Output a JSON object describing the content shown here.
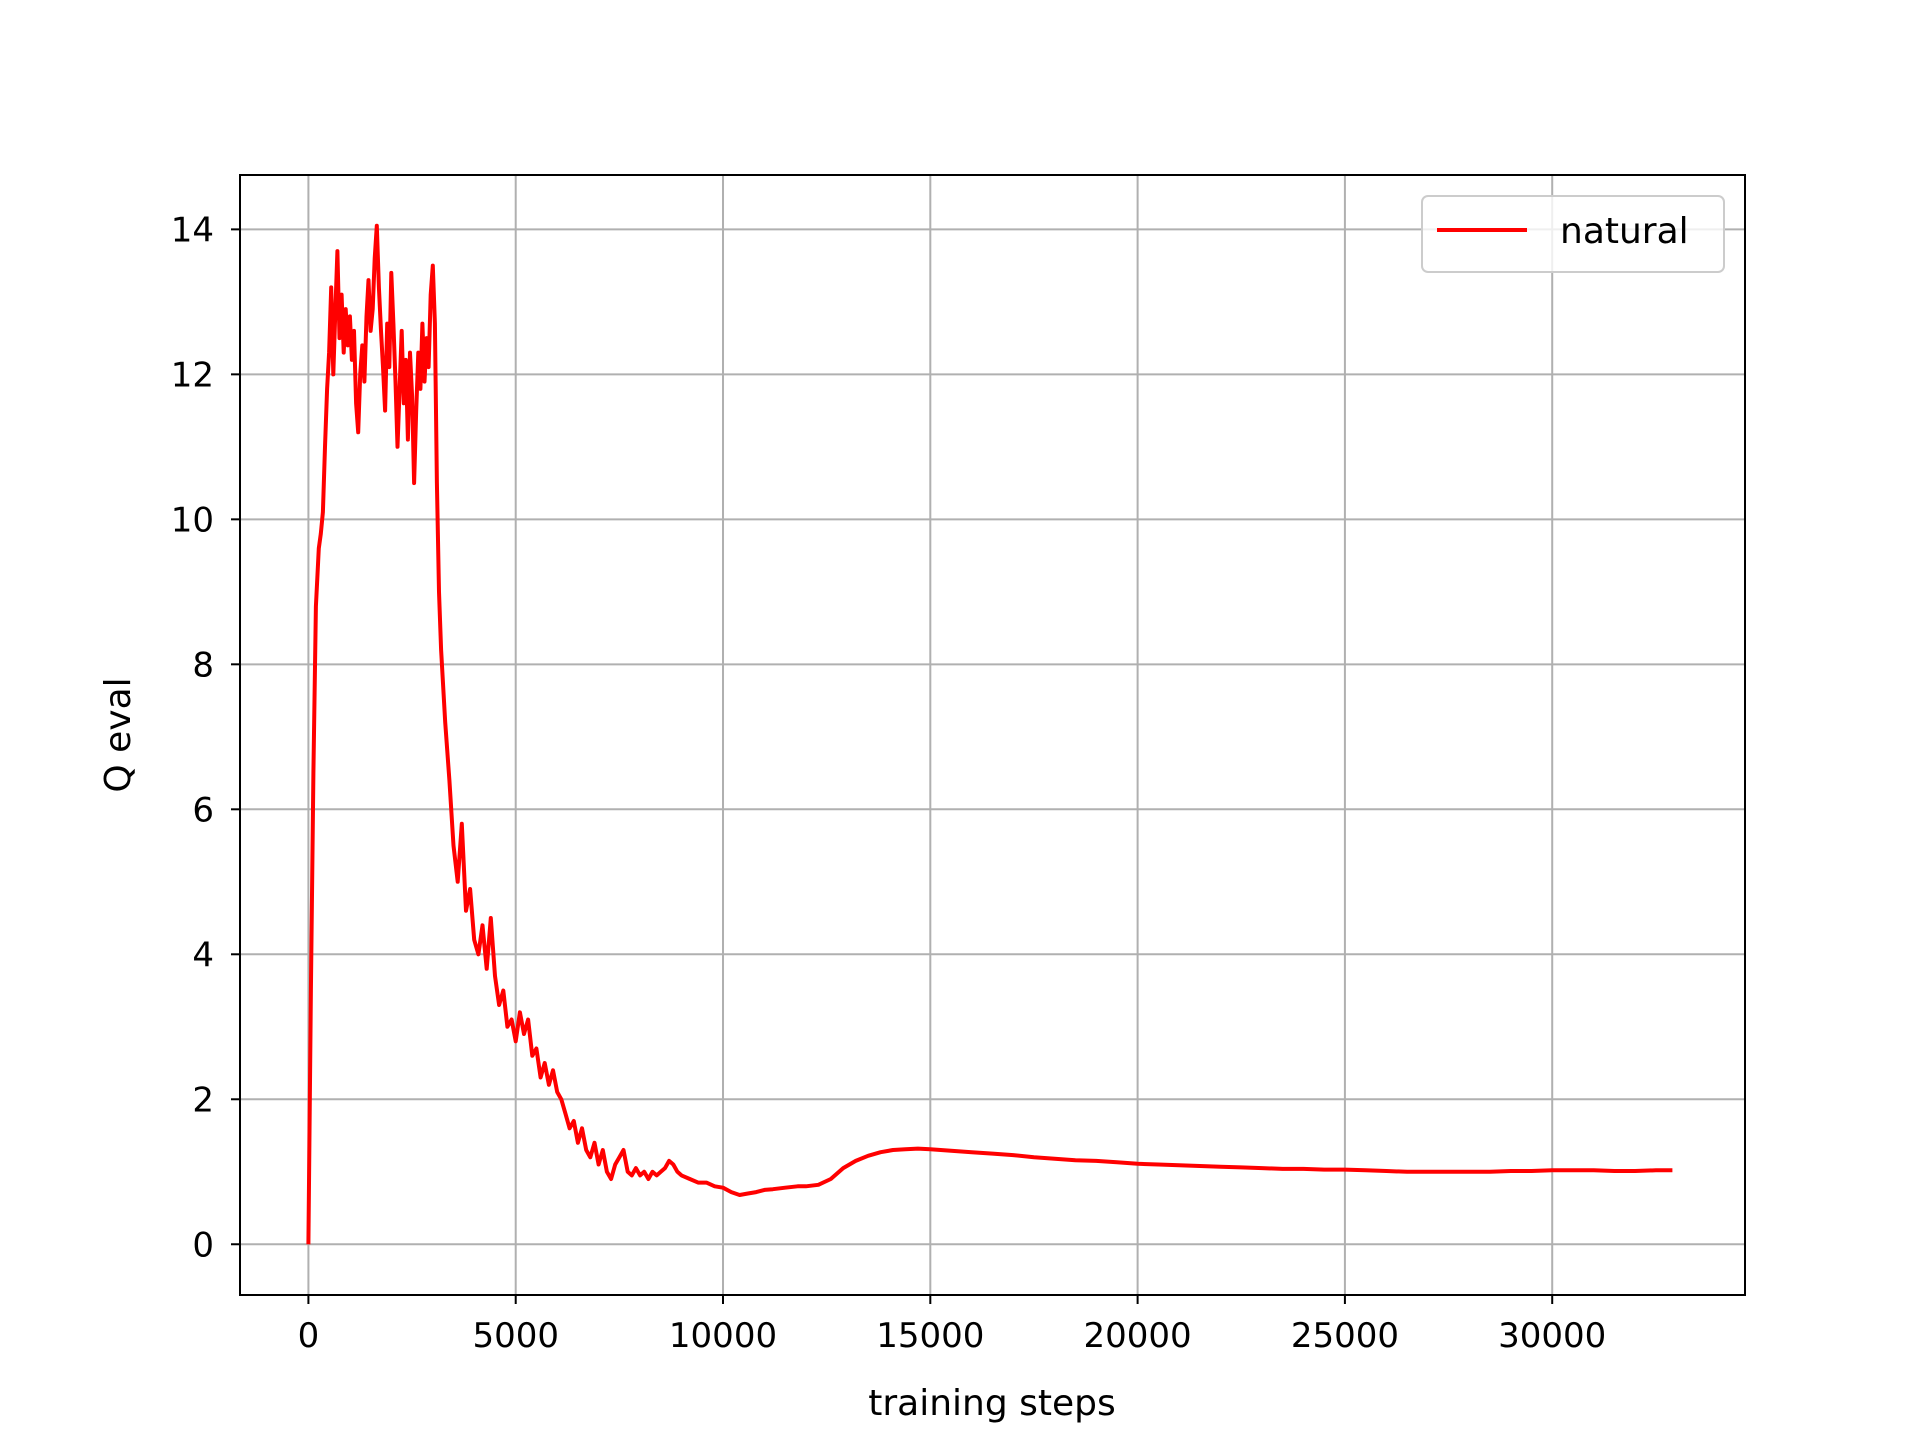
{
  "chart_data": {
    "type": "line",
    "xlabel": "training steps",
    "ylabel": "Q eval",
    "xlim": [
      -1650,
      34650
    ],
    "ylim": [
      -0.7,
      14.75
    ],
    "xticks": [
      0,
      5000,
      10000,
      15000,
      20000,
      25000,
      30000
    ],
    "yticks": [
      0,
      2,
      4,
      6,
      8,
      10,
      12,
      14
    ],
    "grid": true,
    "legend": {
      "position": "top-right",
      "entries": [
        "natural"
      ]
    },
    "series": [
      {
        "name": "natural",
        "color": "#ff0000",
        "points": [
          [
            0,
            0
          ],
          [
            60,
            3.5
          ],
          [
            120,
            6.5
          ],
          [
            180,
            8.8
          ],
          [
            250,
            9.6
          ],
          [
            300,
            9.8
          ],
          [
            350,
            10.1
          ],
          [
            400,
            11.0
          ],
          [
            450,
            11.8
          ],
          [
            500,
            12.3
          ],
          [
            550,
            13.2
          ],
          [
            600,
            12.0
          ],
          [
            650,
            12.9
          ],
          [
            700,
            13.7
          ],
          [
            750,
            12.5
          ],
          [
            800,
            13.1
          ],
          [
            850,
            12.3
          ],
          [
            900,
            12.9
          ],
          [
            950,
            12.4
          ],
          [
            1000,
            12.8
          ],
          [
            1050,
            12.2
          ],
          [
            1100,
            12.6
          ],
          [
            1150,
            11.6
          ],
          [
            1200,
            11.2
          ],
          [
            1250,
            12.0
          ],
          [
            1300,
            12.4
          ],
          [
            1350,
            11.9
          ],
          [
            1400,
            12.8
          ],
          [
            1450,
            13.3
          ],
          [
            1500,
            12.6
          ],
          [
            1550,
            12.9
          ],
          [
            1600,
            13.6
          ],
          [
            1650,
            14.05
          ],
          [
            1700,
            13.2
          ],
          [
            1750,
            12.6
          ],
          [
            1800,
            12.1
          ],
          [
            1850,
            11.5
          ],
          [
            1900,
            12.7
          ],
          [
            1950,
            12.1
          ],
          [
            2000,
            13.4
          ],
          [
            2050,
            12.7
          ],
          [
            2100,
            11.9
          ],
          [
            2150,
            11.0
          ],
          [
            2200,
            11.8
          ],
          [
            2250,
            12.6
          ],
          [
            2300,
            11.6
          ],
          [
            2350,
            12.2
          ],
          [
            2400,
            11.1
          ],
          [
            2450,
            12.3
          ],
          [
            2500,
            11.7
          ],
          [
            2550,
            10.5
          ],
          [
            2600,
            11.5
          ],
          [
            2650,
            12.3
          ],
          [
            2700,
            11.8
          ],
          [
            2750,
            12.7
          ],
          [
            2800,
            11.9
          ],
          [
            2850,
            12.5
          ],
          [
            2900,
            12.1
          ],
          [
            2950,
            13.1
          ],
          [
            3000,
            13.5
          ],
          [
            3050,
            12.7
          ],
          [
            3100,
            10.5
          ],
          [
            3150,
            9.0
          ],
          [
            3200,
            8.2
          ],
          [
            3300,
            7.2
          ],
          [
            3400,
            6.4
          ],
          [
            3500,
            5.5
          ],
          [
            3600,
            5.0
          ],
          [
            3700,
            5.8
          ],
          [
            3800,
            4.6
          ],
          [
            3900,
            4.9
          ],
          [
            4000,
            4.2
          ],
          [
            4100,
            4.0
          ],
          [
            4200,
            4.4
          ],
          [
            4300,
            3.8
          ],
          [
            4400,
            4.5
          ],
          [
            4500,
            3.7
          ],
          [
            4600,
            3.3
          ],
          [
            4700,
            3.5
          ],
          [
            4800,
            3.0
          ],
          [
            4900,
            3.1
          ],
          [
            5000,
            2.8
          ],
          [
            5100,
            3.2
          ],
          [
            5200,
            2.9
          ],
          [
            5300,
            3.1
          ],
          [
            5400,
            2.6
          ],
          [
            5500,
            2.7
          ],
          [
            5600,
            2.3
          ],
          [
            5700,
            2.5
          ],
          [
            5800,
            2.2
          ],
          [
            5900,
            2.4
          ],
          [
            6000,
            2.1
          ],
          [
            6100,
            2.0
          ],
          [
            6200,
            1.8
          ],
          [
            6300,
            1.6
          ],
          [
            6400,
            1.7
          ],
          [
            6500,
            1.4
          ],
          [
            6600,
            1.6
          ],
          [
            6700,
            1.3
          ],
          [
            6800,
            1.2
          ],
          [
            6900,
            1.4
          ],
          [
            7000,
            1.1
          ],
          [
            7100,
            1.3
          ],
          [
            7200,
            1.0
          ],
          [
            7300,
            0.9
          ],
          [
            7400,
            1.1
          ],
          [
            7500,
            1.2
          ],
          [
            7600,
            1.3
          ],
          [
            7700,
            1.0
          ],
          [
            7800,
            0.95
          ],
          [
            7900,
            1.05
          ],
          [
            8000,
            0.95
          ],
          [
            8100,
            1.0
          ],
          [
            8200,
            0.9
          ],
          [
            8300,
            1.0
          ],
          [
            8400,
            0.95
          ],
          [
            8500,
            1.0
          ],
          [
            8600,
            1.05
          ],
          [
            8700,
            1.15
          ],
          [
            8800,
            1.1
          ],
          [
            8900,
            1.0
          ],
          [
            9000,
            0.95
          ],
          [
            9200,
            0.9
          ],
          [
            9400,
            0.85
          ],
          [
            9600,
            0.85
          ],
          [
            9800,
            0.8
          ],
          [
            10000,
            0.78
          ],
          [
            10200,
            0.72
          ],
          [
            10400,
            0.68
          ],
          [
            10600,
            0.7
          ],
          [
            10800,
            0.72
          ],
          [
            11000,
            0.75
          ],
          [
            11200,
            0.76
          ],
          [
            11500,
            0.78
          ],
          [
            11800,
            0.8
          ],
          [
            12000,
            0.8
          ],
          [
            12300,
            0.82
          ],
          [
            12600,
            0.9
          ],
          [
            12900,
            1.05
          ],
          [
            13200,
            1.15
          ],
          [
            13500,
            1.22
          ],
          [
            13800,
            1.27
          ],
          [
            14100,
            1.3
          ],
          [
            14400,
            1.31
          ],
          [
            14700,
            1.32
          ],
          [
            15000,
            1.31
          ],
          [
            15500,
            1.29
          ],
          [
            16000,
            1.27
          ],
          [
            16500,
            1.25
          ],
          [
            17000,
            1.23
          ],
          [
            17500,
            1.2
          ],
          [
            18000,
            1.18
          ],
          [
            18500,
            1.16
          ],
          [
            19000,
            1.15
          ],
          [
            19500,
            1.13
          ],
          [
            20000,
            1.11
          ],
          [
            20500,
            1.1
          ],
          [
            21000,
            1.09
          ],
          [
            21500,
            1.08
          ],
          [
            22000,
            1.07
          ],
          [
            22500,
            1.06
          ],
          [
            23000,
            1.05
          ],
          [
            23500,
            1.04
          ],
          [
            24000,
            1.04
          ],
          [
            24500,
            1.03
          ],
          [
            25000,
            1.03
          ],
          [
            25500,
            1.02
          ],
          [
            26000,
            1.01
          ],
          [
            26500,
            1.0
          ],
          [
            27000,
            1.0
          ],
          [
            27500,
            1.0
          ],
          [
            28000,
            1.0
          ],
          [
            28500,
            1.0
          ],
          [
            29000,
            1.01
          ],
          [
            29500,
            1.01
          ],
          [
            30000,
            1.02
          ],
          [
            30500,
            1.02
          ],
          [
            31000,
            1.02
          ],
          [
            31500,
            1.01
          ],
          [
            32000,
            1.01
          ],
          [
            32500,
            1.02
          ],
          [
            32900,
            1.02
          ]
        ]
      }
    ]
  }
}
